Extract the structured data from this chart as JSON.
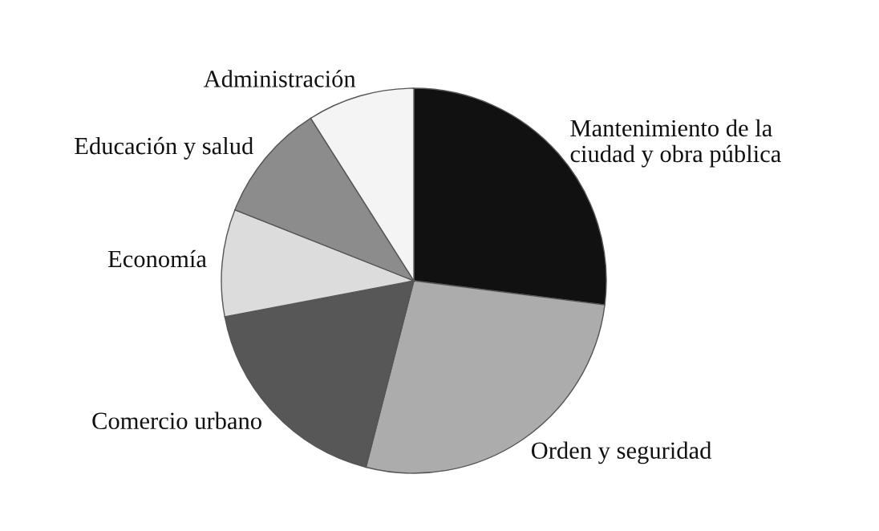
{
  "chart_data": {
    "type": "pie",
    "categories": [
      "Mantenimiento de la\nciudad y obra pública",
      "Orden y seguridad",
      "Comercio urbano",
      "Economía",
      "Educación y salud",
      "Administración"
    ],
    "values": [
      27,
      27,
      18,
      9,
      10,
      9
    ],
    "colors": [
      "#111111",
      "#acacac",
      "#575757",
      "#dcdcdc",
      "#8c8c8c",
      "#f4f4f4"
    ],
    "legend": false
  }
}
